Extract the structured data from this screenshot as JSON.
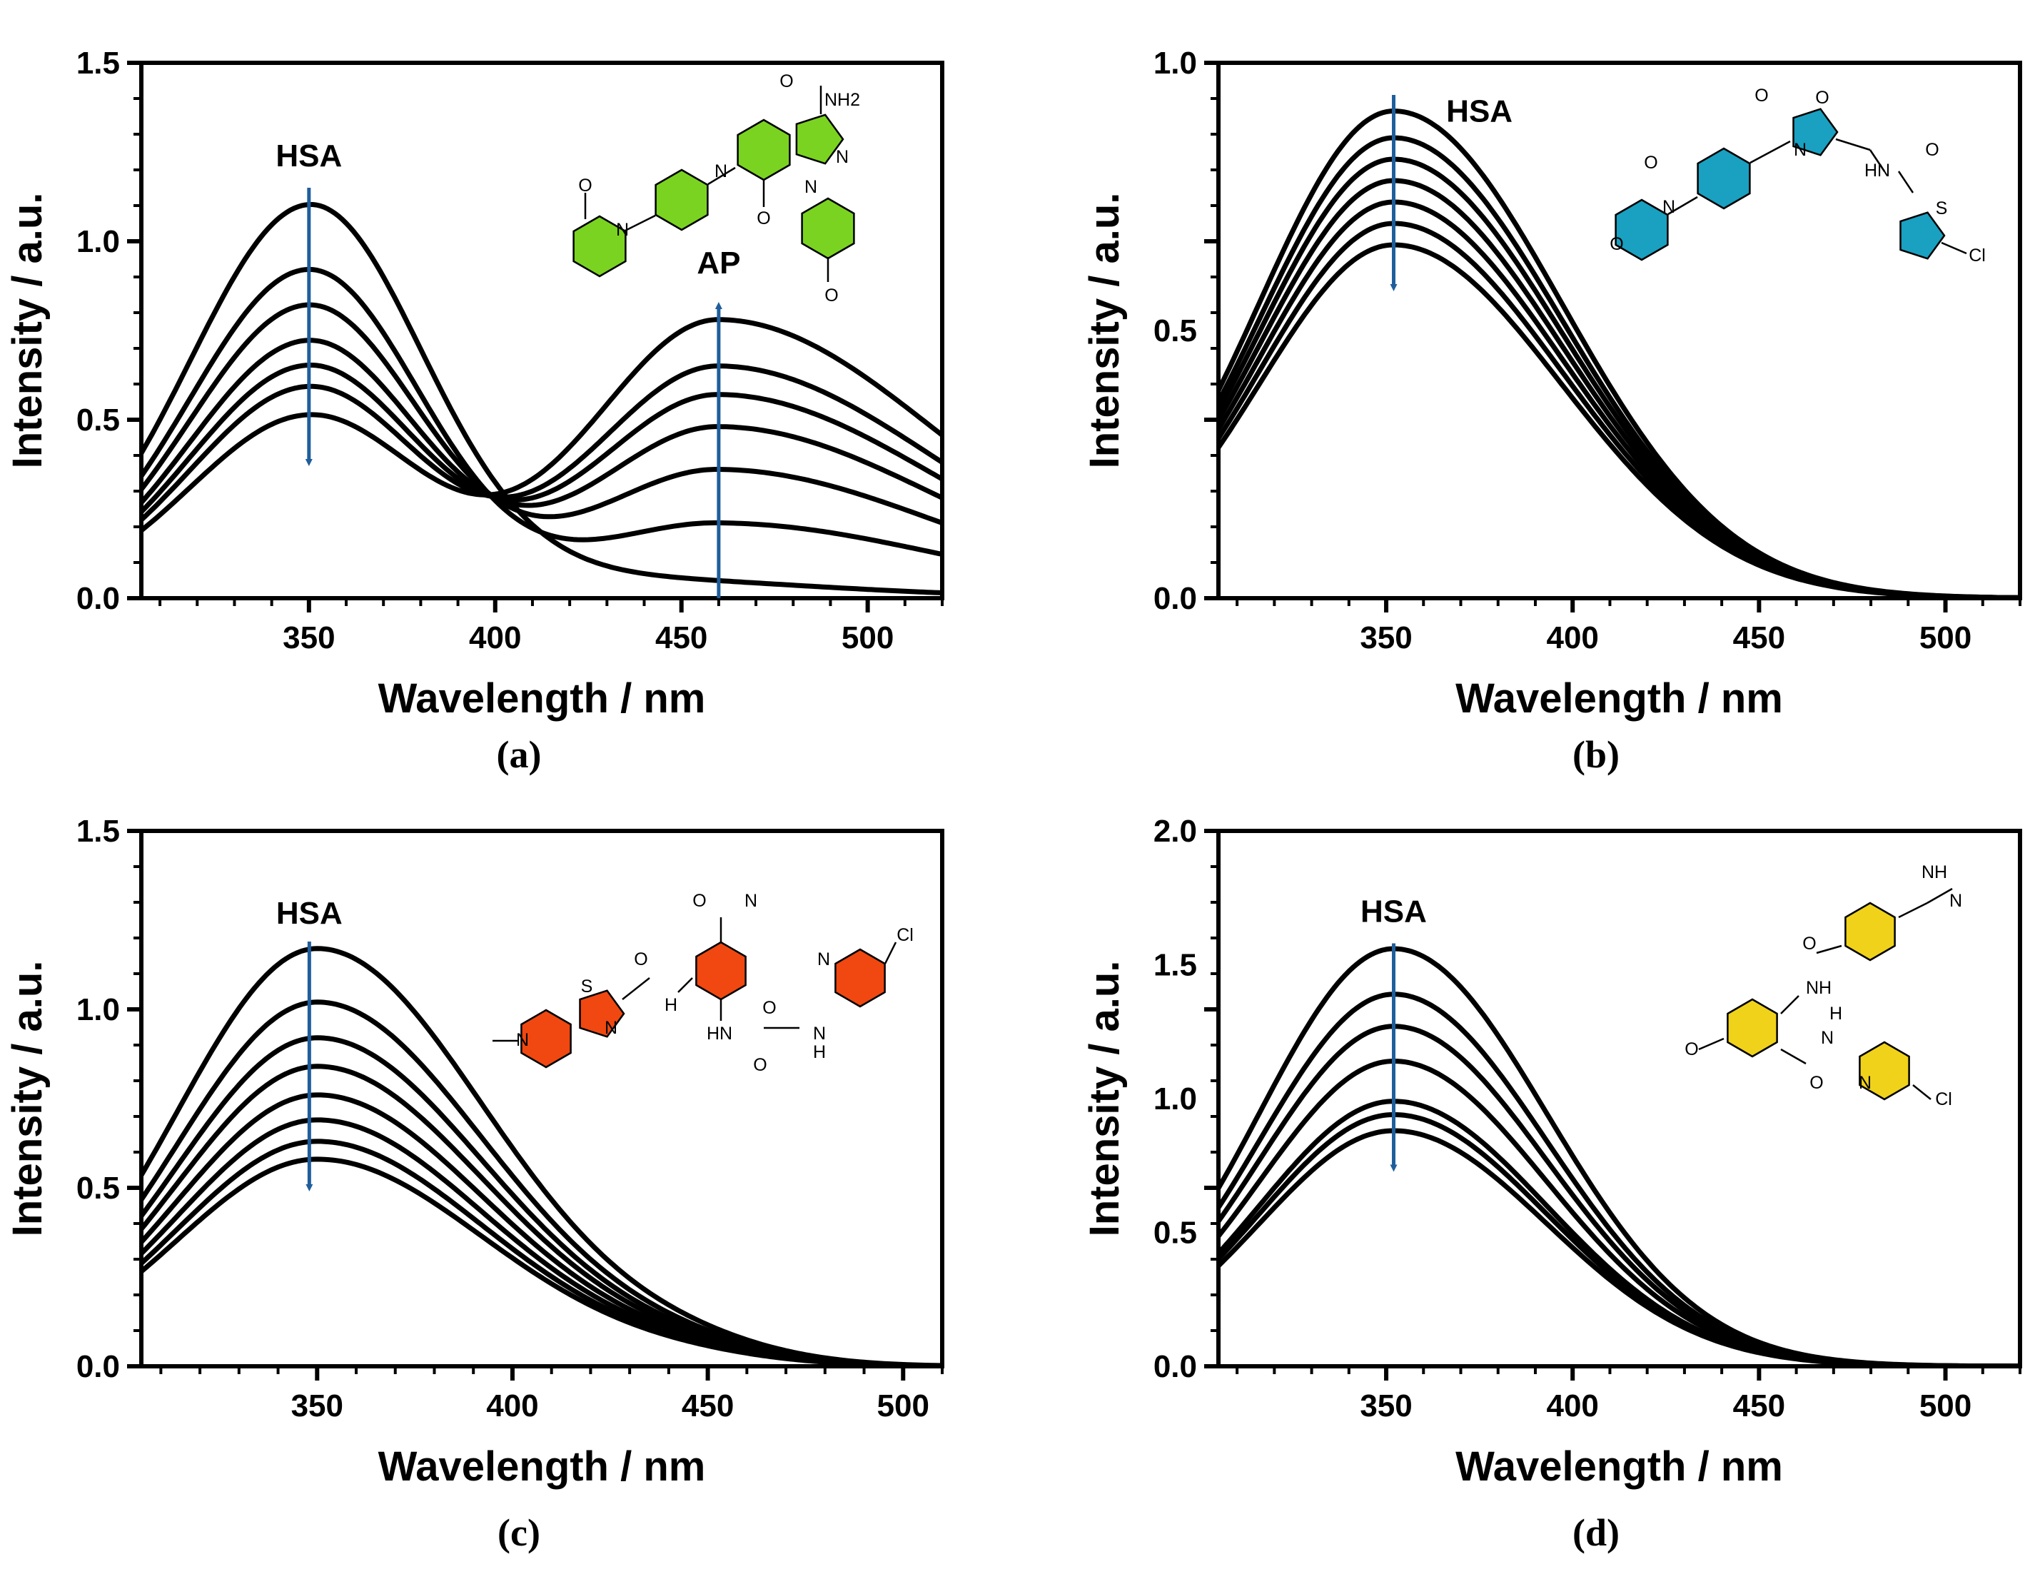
{
  "figure": {
    "panel_labels": [
      "(a)",
      "(b)",
      "(c)",
      "(d)"
    ]
  },
  "colors": {
    "curve": "#000000",
    "arrow": "#1f5e9c",
    "panel_a_mol": "#7bd321",
    "panel_b_mol": "#1aa0c0",
    "panel_c_mol": "#f04810",
    "panel_d_mol": "#f0d21a"
  },
  "chart_data": [
    {
      "type": "line",
      "panel": "(a)",
      "xlabel": "Wavelength / nm",
      "ylabel": "Intensity / a.u.",
      "xlim": [
        305,
        520
      ],
      "ylim": [
        0,
        1.5
      ],
      "xticks": [
        350,
        400,
        450,
        500
      ],
      "yticks": [
        0.0,
        0.5,
        1.0,
        1.5
      ],
      "tick_labels_x": [
        "350",
        "400",
        "450",
        "500"
      ],
      "tick_labels_y": [
        "0.0",
        "0.5",
        "1.0",
        "1.5"
      ],
      "annotations": [
        "HSA",
        "AP"
      ],
      "series_peaks_350nm": [
        1.09,
        0.92,
        0.82,
        0.72,
        0.65,
        0.59,
        0.51
      ],
      "series_peaks_460nm": [
        0.0,
        0.21,
        0.36,
        0.48,
        0.57,
        0.65,
        0.78
      ],
      "isosbestic_point": [
        400,
        0.28
      ],
      "molecule_atoms": [
        "O",
        "NH2",
        "N",
        "N",
        "N",
        "N",
        "O",
        "O"
      ]
    },
    {
      "type": "line",
      "panel": "(b)",
      "xlabel": "Wavelength / nm",
      "ylabel": "Intensity / a.u.",
      "xlim": [
        305,
        520
      ],
      "ylim": [
        0,
        1.0
      ],
      "xticks": [
        350,
        400,
        450,
        500
      ],
      "yticks": [
        0.0,
        0.5,
        1.0
      ],
      "tick_labels_x": [
        "350",
        "400",
        "450",
        "500"
      ],
      "tick_labels_y": [
        "0.0",
        "0.5",
        "1.0"
      ],
      "annotations": [
        "HSA"
      ],
      "series_peaks_352nm": [
        0.91,
        0.86,
        0.82,
        0.78,
        0.74,
        0.7,
        0.66
      ],
      "molecule_atoms": [
        "O",
        "O",
        "N",
        "O",
        "N",
        "O",
        "HN",
        "O",
        "S",
        "Cl"
      ]
    },
    {
      "type": "line",
      "panel": "(c)",
      "xlabel": "Wavelength / nm",
      "ylabel": "Intensity / a.u.",
      "xlim": [
        305,
        510
      ],
      "ylim": [
        0,
        1.5
      ],
      "xticks": [
        350,
        400,
        450,
        500
      ],
      "yticks": [
        0.0,
        0.5,
        1.0,
        1.5
      ],
      "tick_labels_x": [
        "350",
        "400",
        "450",
        "500"
      ],
      "tick_labels_y": [
        "0.0",
        "0.5",
        "1.0",
        "1.5"
      ],
      "annotations": [
        "HSA"
      ],
      "series_peaks_350nm": [
        1.17,
        1.02,
        0.92,
        0.84,
        0.76,
        0.69,
        0.63,
        0.58
      ],
      "molecule_atoms": [
        "O",
        "N",
        "S",
        "O",
        "N",
        "N",
        "H",
        "HN",
        "O",
        "N",
        "H",
        "N",
        "Cl",
        "O"
      ]
    },
    {
      "type": "line",
      "panel": "(d)",
      "xlabel": "Wavelength / nm",
      "ylabel": "Intensity / a.u.",
      "xlim": [
        305,
        520
      ],
      "ylim": [
        0,
        2.0
      ],
      "xticks": [
        350,
        400,
        450,
        500
      ],
      "yticks": [
        0.0,
        0.5,
        1.0,
        1.5,
        2.0
      ],
      "tick_labels_x": [
        "350",
        "400",
        "450",
        "500"
      ],
      "tick_labels_y": [
        "0.0",
        "0.5",
        "1.0",
        "1.5",
        "2.0"
      ],
      "annotations": [
        "HSA"
      ],
      "series_peaks_352nm": [
        1.56,
        1.39,
        1.27,
        1.14,
        0.99,
        0.94,
        0.88
      ],
      "molecule_atoms": [
        "NH",
        "N",
        "O",
        "NH",
        "O",
        "O",
        "N",
        "H",
        "N",
        "Cl"
      ]
    }
  ]
}
